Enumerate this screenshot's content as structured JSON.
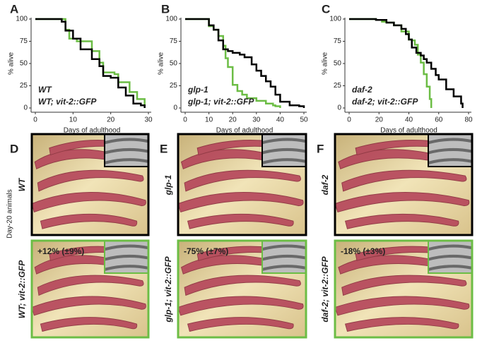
{
  "chart_data": [
    {
      "type": "line",
      "step": true,
      "panel": "A",
      "x_label": "Days of adulthood",
      "y_label": "% alive",
      "xlim": [
        0,
        30
      ],
      "ylim": [
        0,
        100
      ],
      "xticks": [
        0,
        10,
        20,
        30
      ],
      "yticks": [
        0,
        25,
        50,
        75,
        100
      ],
      "series": [
        {
          "name": "WT",
          "color": "#000000",
          "x": [
            0,
            7,
            8,
            10,
            12,
            15,
            17,
            18,
            20,
            22,
            24,
            26,
            28,
            29
          ],
          "values": [
            100,
            97,
            87,
            78,
            66,
            55,
            47,
            36,
            34,
            23,
            14,
            5,
            3,
            0
          ]
        },
        {
          "name": "WT; vit-2::GFP",
          "color": "#6cbd45",
          "x": [
            0,
            8,
            9,
            11,
            15,
            17,
            18,
            21,
            22,
            25,
            27,
            29
          ],
          "values": [
            100,
            88,
            78,
            75,
            64,
            51,
            40,
            38,
            29,
            18,
            10,
            0
          ]
        }
      ]
    },
    {
      "type": "line",
      "step": true,
      "panel": "B",
      "x_label": "Days of adulthood",
      "y_label": "% alive",
      "xlim": [
        0,
        50
      ],
      "ylim": [
        0,
        100
      ],
      "xticks": [
        0,
        10,
        20,
        30,
        40,
        50
      ],
      "yticks": [
        0,
        25,
        50,
        75,
        100
      ],
      "series": [
        {
          "name": "glp-1",
          "color": "#000000",
          "x": [
            0,
            10,
            12,
            14,
            16,
            18,
            20,
            23,
            25,
            28,
            30,
            32,
            34,
            36,
            38,
            40,
            44,
            48,
            50
          ],
          "values": [
            100,
            93,
            88,
            76,
            66,
            64,
            62,
            60,
            57,
            49,
            42,
            36,
            30,
            24,
            15,
            7,
            3,
            2,
            0
          ]
        },
        {
          "name": "glp-1; vit-2::GFP",
          "color": "#6cbd45",
          "x": [
            0,
            10,
            12,
            14,
            16,
            17,
            18,
            20,
            22,
            24,
            26,
            30,
            34,
            37,
            38,
            40
          ],
          "values": [
            100,
            92,
            88,
            81,
            70,
            56,
            46,
            26,
            19,
            15,
            11,
            8,
            5,
            3,
            2,
            0
          ]
        }
      ]
    },
    {
      "type": "line",
      "step": true,
      "panel": "C",
      "x_label": "Days of adulthood",
      "y_label": "% alive",
      "xlim": [
        0,
        80
      ],
      "ylim": [
        0,
        100
      ],
      "xticks": [
        0,
        20,
        40,
        60,
        80
      ],
      "yticks": [
        0,
        25,
        50,
        75,
        100
      ],
      "series": [
        {
          "name": "daf-2",
          "color": "#000000",
          "x": [
            0,
            18,
            25,
            30,
            35,
            38,
            40,
            42,
            45,
            48,
            50,
            52,
            55,
            58,
            60,
            65,
            70,
            75,
            76
          ],
          "values": [
            100,
            99,
            96,
            93,
            89,
            83,
            77,
            68,
            62,
            59,
            55,
            51,
            44,
            37,
            32,
            21,
            13,
            5,
            0
          ]
        },
        {
          "name": "daf-2; vit-2::GFP",
          "color": "#6cbd45",
          "x": [
            0,
            18,
            22,
            25,
            30,
            35,
            40,
            42,
            44,
            46,
            48,
            50,
            52,
            54,
            55
          ],
          "values": [
            100,
            99,
            97,
            96,
            93,
            86,
            77,
            76,
            71,
            60,
            51,
            38,
            24,
            10,
            0
          ]
        }
      ]
    }
  ],
  "row_label": "Day-20 animals",
  "image_panels": [
    {
      "label": "D",
      "strain": "WT",
      "transgenic": "WT; vit-2::GFP",
      "change": "+12% (±9%)"
    },
    {
      "label": "E",
      "strain": "glp-1",
      "transgenic": "glp-1; vit-2::GFP",
      "change": "-75% (±7%)"
    },
    {
      "label": "F",
      "strain": "daf-2",
      "transgenic": "daf-2; vit-2::GFP",
      "change": "-18% (±3%)"
    }
  ]
}
